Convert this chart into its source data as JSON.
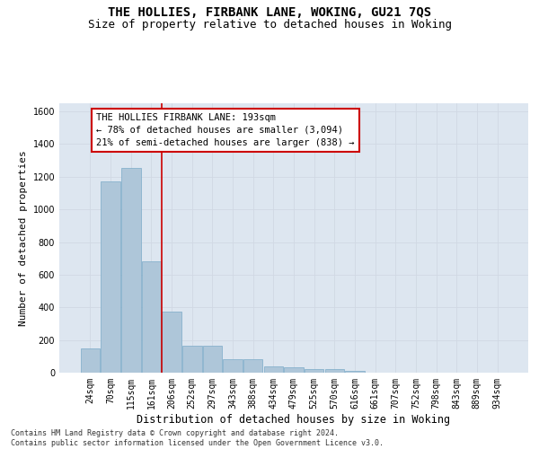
{
  "title": "THE HOLLIES, FIRBANK LANE, WOKING, GU21 7QS",
  "subtitle": "Size of property relative to detached houses in Woking",
  "xlabel": "Distribution of detached houses by size in Woking",
  "ylabel": "Number of detached properties",
  "footer_line1": "Contains HM Land Registry data © Crown copyright and database right 2024.",
  "footer_line2": "Contains public sector information licensed under the Open Government Licence v3.0.",
  "categories": [
    "24sqm",
    "70sqm",
    "115sqm",
    "161sqm",
    "206sqm",
    "252sqm",
    "297sqm",
    "343sqm",
    "388sqm",
    "434sqm",
    "479sqm",
    "525sqm",
    "570sqm",
    "616sqm",
    "661sqm",
    "707sqm",
    "752sqm",
    "798sqm",
    "843sqm",
    "889sqm",
    "934sqm"
  ],
  "values": [
    148,
    1170,
    1255,
    680,
    375,
    165,
    165,
    80,
    80,
    38,
    33,
    20,
    20,
    13,
    0,
    0,
    0,
    0,
    0,
    0,
    0
  ],
  "bar_color": "#aec6d9",
  "bar_edge_color": "#7baac8",
  "vline_color": "#cc0000",
  "vline_x": 3.5,
  "annotation_text": "THE HOLLIES FIRBANK LANE: 193sqm\n← 78% of detached houses are smaller (3,094)\n21% of semi-detached houses are larger (838) →",
  "annotation_box_color": "#ffffff",
  "annotation_box_edge_color": "#cc0000",
  "ylim": [
    0,
    1650
  ],
  "yticks": [
    0,
    200,
    400,
    600,
    800,
    1000,
    1200,
    1400,
    1600
  ],
  "grid_color": "#d0d8e4",
  "bg_color": "#dde6f0",
  "title_fontsize": 10,
  "subtitle_fontsize": 9,
  "xlabel_fontsize": 8.5,
  "ylabel_fontsize": 8,
  "tick_fontsize": 7,
  "annotation_fontsize": 7.5,
  "footer_fontsize": 6
}
